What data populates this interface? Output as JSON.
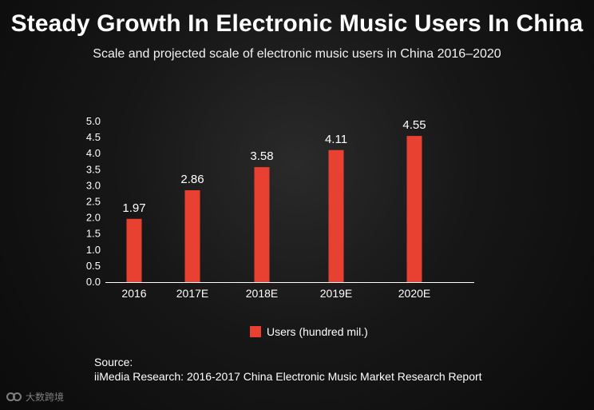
{
  "title": "Steady Growth In Electronic Music Users In China",
  "subtitle": "Scale and projected scale of electronic music users in China 2016–2020",
  "chart_data": {
    "type": "bar",
    "categories": [
      "2016",
      "2017E",
      "2018E",
      "2019E",
      "2020E"
    ],
    "series": [
      {
        "name": "Users (hundred mil.)",
        "values": [
          1.97,
          2.86,
          3.58,
          4.11,
          4.55
        ],
        "color": "#e84132"
      }
    ],
    "y_ticks": [
      "0.0",
      "0.5",
      "1.0",
      "1.5",
      "2.0",
      "2.5",
      "3.0",
      "3.5",
      "4.0",
      "4.5",
      "5.0"
    ],
    "ylim": [
      0,
      5.0
    ],
    "grid": false,
    "legend": "bottom-center"
  },
  "source": {
    "label": "Source:",
    "reference": "iiMedia Research: 2016-2017 China Electronic Music Market Research Report"
  },
  "watermark": "大数跨境",
  "colors": {
    "background": "#111111",
    "bar": "#e84132",
    "text": "#ffffff"
  }
}
